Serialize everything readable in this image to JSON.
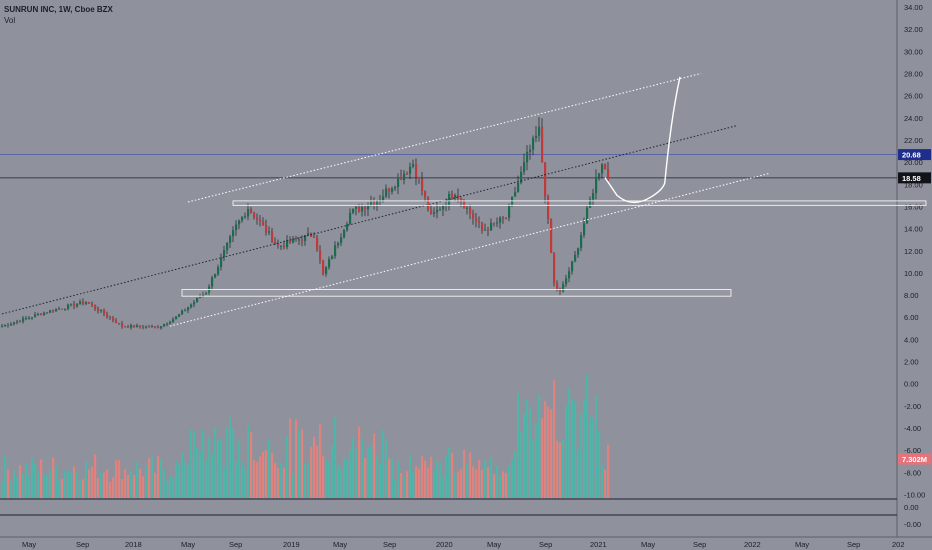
{
  "header": {
    "symbol": "SUNRUN INC, 1W, Cboe BZX",
    "volume_label": "Vol"
  },
  "colors": {
    "background": "#8f929c",
    "up": "#26a69a",
    "down": "#ef5350",
    "up_volume": "#4fb5a8",
    "down_volume": "#e0837f",
    "channel": "#ffffff",
    "midline": "#1f2230",
    "price_marker": "#1f2d8c",
    "last_price_marker": "#101318",
    "volume_marker": "#e5737b"
  },
  "chart_data": {
    "type": "candlestick",
    "price_axis": {
      "ticks": [
        "34.00",
        "32.00",
        "30.00",
        "28.00",
        "26.00",
        "24.00",
        "22.00",
        "20.00",
        "18.00",
        "16.00",
        "14.00",
        "12.00",
        "10.00",
        "8.00",
        "6.00",
        "4.00",
        "2.00",
        "0.00",
        "-2.00",
        "-4.00",
        "-6.00",
        "-8.00",
        "-10.00"
      ],
      "tick_values": [
        34,
        32,
        30,
        28,
        26,
        24,
        22,
        20,
        18,
        16,
        14,
        12,
        10,
        8,
        6,
        4,
        2,
        0,
        -2,
        -4,
        -6,
        -8,
        -10
      ]
    },
    "volume_pane_axis": {
      "ticks": [
        "0.00",
        "-0.00"
      ]
    },
    "time_axis": {
      "labels": [
        "May",
        "Sep",
        "2018",
        "May",
        "Sep",
        "2019",
        "May",
        "Sep",
        "2020",
        "May",
        "Sep",
        "2021",
        "May",
        "Sep",
        "2022",
        "May",
        "Sep",
        "202"
      ]
    },
    "markers": {
      "price_line": {
        "label": "20.68",
        "value": 20.68
      },
      "last_price": {
        "label": "18.58",
        "value": 18.58
      },
      "volume": {
        "label": "7.302M",
        "value_axis": -6.8
      }
    },
    "waypoints": [
      {
        "t": 0,
        "p": 5.2
      },
      {
        "t": 15,
        "p": 6.5
      },
      {
        "t": 28,
        "p": 7.4
      },
      {
        "t": 40,
        "p": 5.2
      },
      {
        "t": 52,
        "p": 5.1
      },
      {
        "t": 58,
        "p": 6.0
      },
      {
        "t": 68,
        "p": 8.3
      },
      {
        "t": 78,
        "p": 14.2
      },
      {
        "t": 82,
        "p": 15.9
      },
      {
        "t": 92,
        "p": 12.4
      },
      {
        "t": 104,
        "p": 13.5
      },
      {
        "t": 107,
        "p": 9.8
      },
      {
        "t": 116,
        "p": 15.4
      },
      {
        "t": 126,
        "p": 16.8
      },
      {
        "t": 137,
        "p": 19.9
      },
      {
        "t": 143,
        "p": 15.0
      },
      {
        "t": 151,
        "p": 17.4
      },
      {
        "t": 160,
        "p": 13.8
      },
      {
        "t": 168,
        "p": 15.0
      },
      {
        "t": 175,
        "p": 20.5
      },
      {
        "t": 179,
        "p": 22.8
      },
      {
        "t": 184,
        "p": 9.0
      },
      {
        "t": 186,
        "p": 8.2
      },
      {
        "t": 191,
        "p": 11.5
      },
      {
        "t": 198,
        "p": 18.5
      },
      {
        "t": 200,
        "p": 20.1
      },
      {
        "t": 202,
        "p": 18.6
      }
    ],
    "drawings": {
      "upper_channel": [
        {
          "t": 62,
          "p": 16.4
        },
        {
          "t": 233,
          "p": 28.0
        }
      ],
      "midline": [
        {
          "t": 0,
          "p": 6.3
        },
        {
          "t": 245,
          "p": 23.3
        }
      ],
      "lower_channel": [
        {
          "t": 56,
          "p": 5.2
        },
        {
          "t": 256,
          "p": 19.0
        }
      ],
      "upper_zone": {
        "t_start": 77,
        "t_end": 308,
        "p_low": 16.1,
        "p_high": 16.5
      },
      "lower_zone": {
        "t_start": 60,
        "t_end": 243,
        "p_low": 7.9,
        "p_high": 8.5
      },
      "projection": [
        {
          "t": 201,
          "p": 18.6
        },
        {
          "t": 205,
          "p": 17.0
        },
        {
          "t": 210,
          "p": 16.2
        },
        {
          "t": 216,
          "p": 16.8
        },
        {
          "t": 221,
          "p": 17.6
        },
        {
          "t": 223,
          "p": 24.0
        },
        {
          "t": 226,
          "p": 27.7
        }
      ]
    }
  }
}
